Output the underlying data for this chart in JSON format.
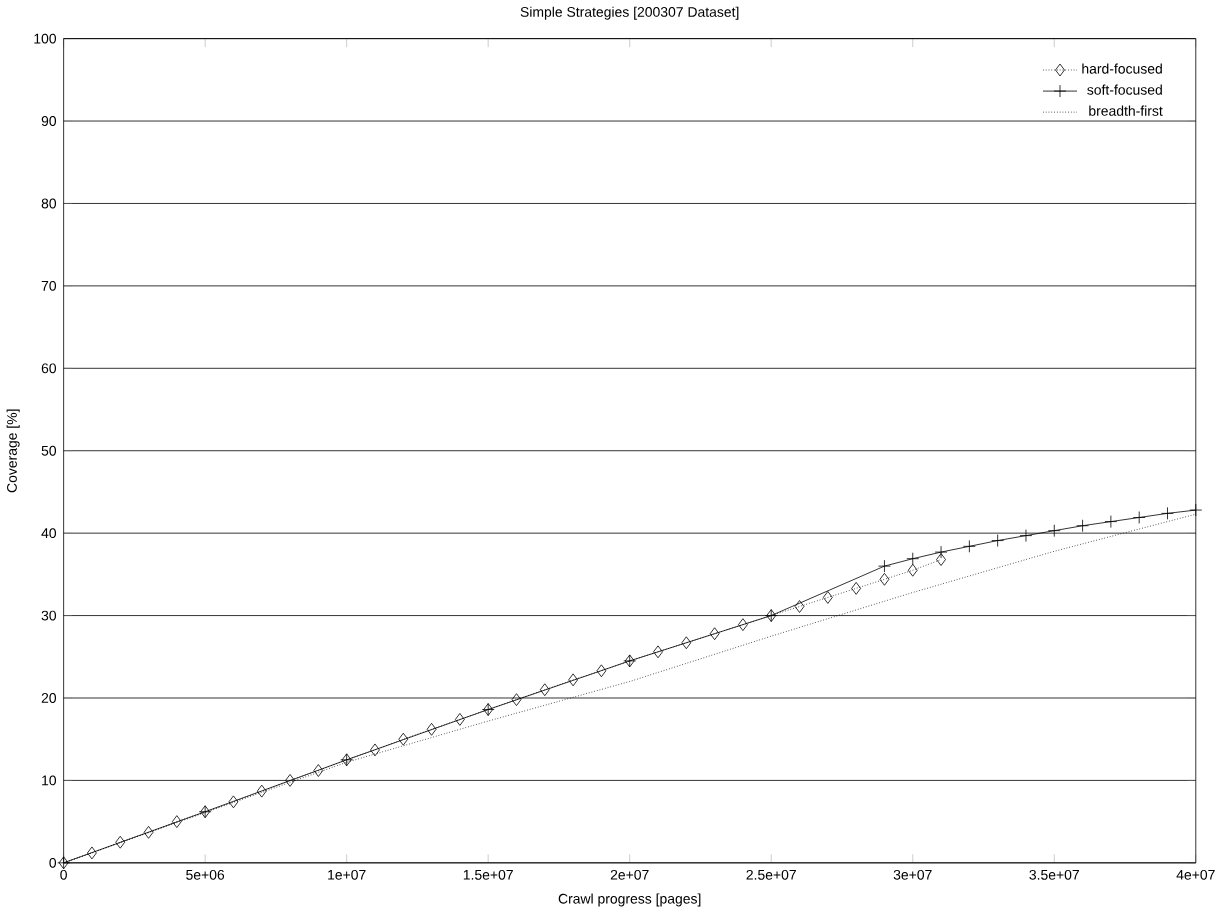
{
  "chart_data": {
    "type": "line",
    "title": "Simple Strategies [200307 Dataset]",
    "xlabel": "Crawl progress [pages]",
    "ylabel": "Coverage [%]",
    "xlim": [
      0,
      40000000
    ],
    "ylim": [
      0,
      100
    ],
    "xticks": [
      0,
      {
        "value": 5000000,
        "label": "5e+06"
      },
      {
        "value": 10000000,
        "label": "1e+07"
      },
      {
        "value": 15000000,
        "label": "1.5e+07"
      },
      {
        "value": 20000000,
        "label": "2e+07"
      },
      {
        "value": 25000000,
        "label": "2.5e+07"
      },
      {
        "value": 30000000,
        "label": "3e+07"
      },
      {
        "value": 35000000,
        "label": "3.5e+07"
      },
      {
        "value": 40000000,
        "label": "4e+07"
      }
    ],
    "yticks": [
      0,
      10,
      20,
      30,
      40,
      50,
      60,
      70,
      80,
      90,
      100
    ],
    "grid": "y",
    "legend": "top right",
    "series": [
      {
        "name": "hard-focused",
        "color": "#000000",
        "marker": "diamond",
        "line_style": "dotted",
        "x": [
          0,
          1000000,
          2000000,
          3000000,
          4000000,
          5000000,
          6000000,
          7000000,
          8000000,
          9000000,
          10000000,
          11000000,
          12000000,
          13000000,
          14000000,
          15000000,
          16000000,
          17000000,
          18000000,
          19000000,
          20000000,
          21000000,
          22000000,
          23000000,
          24000000,
          25000000,
          26000000,
          27000000,
          28000000,
          29000000,
          30000000,
          31000000
        ],
        "values": [
          0,
          1.2,
          2.5,
          3.7,
          5,
          6.2,
          7.4,
          8.7,
          10,
          11.2,
          12.5,
          13.7,
          15,
          16.2,
          17.4,
          18.6,
          19.8,
          21,
          22.2,
          23.3,
          24.5,
          25.6,
          26.7,
          27.8,
          28.9,
          30,
          31.1,
          32.2,
          33.3,
          34.4,
          35.5,
          36.8
        ]
      },
      {
        "name": "soft-focused",
        "color": "#000000",
        "marker": "cross",
        "line_style": "solid",
        "x": [
          0,
          5000000,
          10000000,
          15000000,
          20000000,
          25000000,
          29000000,
          30000000,
          31000000,
          32000000,
          33000000,
          34000000,
          35000000,
          36000000,
          37000000,
          38000000,
          39000000,
          40000000
        ],
        "values": [
          0,
          6.2,
          12.5,
          18.6,
          24.5,
          30,
          36,
          36.9,
          37.7,
          38.4,
          39.1,
          39.7,
          40.3,
          40.9,
          41.4,
          41.9,
          42.4,
          42.8
        ]
      },
      {
        "name": "breadth-first",
        "color": "#000000",
        "marker": "none",
        "line_style": "dotted",
        "x": [
          0,
          5000000,
          10000000,
          15000000,
          20000000,
          25000000,
          30000000,
          35000000,
          40000000
        ],
        "values": [
          0,
          6.1,
          12.2,
          17.2,
          22,
          27.5,
          32.8,
          37.8,
          42.3
        ]
      }
    ]
  }
}
